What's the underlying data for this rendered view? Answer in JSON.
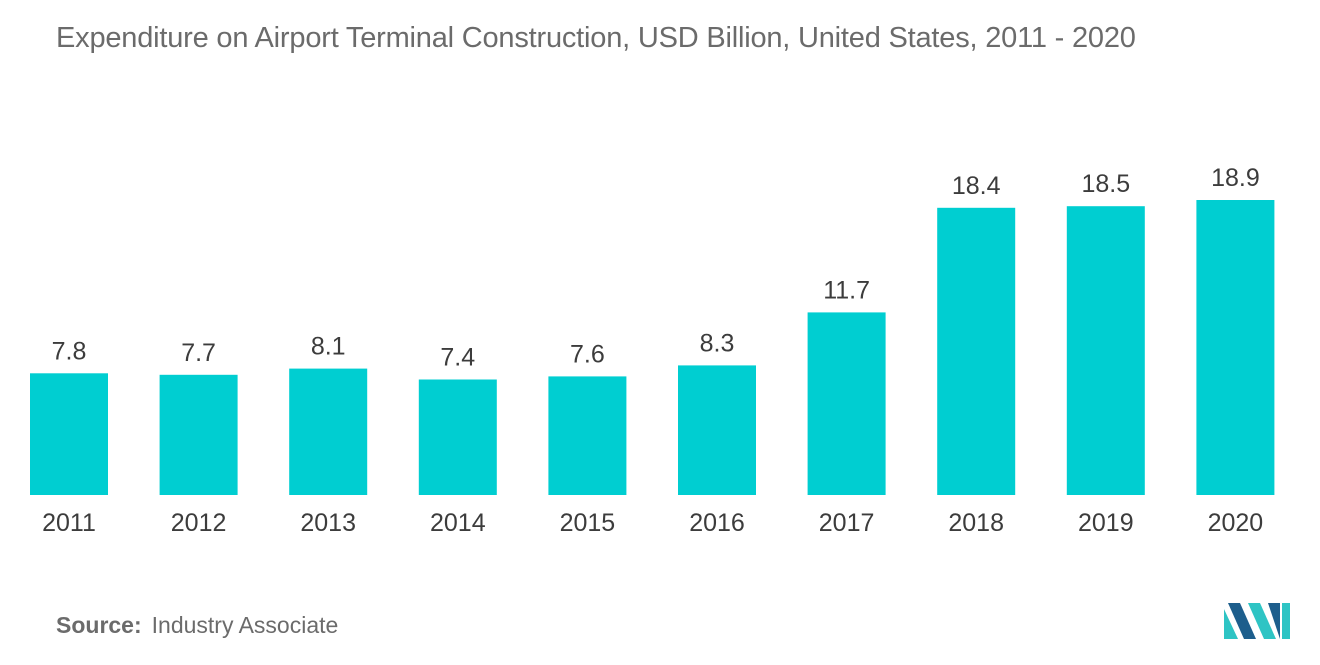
{
  "title": "Expenditure on Airport Terminal Construction, USD Billion, United States, 2011 - 2020",
  "source": {
    "label": "Source:",
    "value": "Industry Associate"
  },
  "colors": {
    "bar": "#00ced1",
    "logo_dark": "#1d5e8c",
    "logo_light": "#2ec4c4"
  },
  "logo": {
    "icon": "mordor-intelligence-logo"
  },
  "chart_data": {
    "type": "bar",
    "title": "Expenditure on Airport Terminal Construction, USD Billion, United States, 2011 - 2020",
    "xlabel": "",
    "ylabel": "",
    "categories": [
      "2011",
      "2012",
      "2013",
      "2014",
      "2015",
      "2016",
      "2017",
      "2018",
      "2019",
      "2020"
    ],
    "values": [
      7.8,
      7.7,
      8.1,
      7.4,
      7.6,
      8.3,
      11.7,
      18.4,
      18.5,
      18.9
    ],
    "value_labels": [
      "7.8",
      "7.7",
      "8.1",
      "7.4",
      "7.6",
      "8.3",
      "11.7",
      "18.4",
      "18.5",
      "18.9"
    ],
    "ylim": [
      0,
      18.9
    ],
    "grid": false,
    "legend": "none"
  }
}
